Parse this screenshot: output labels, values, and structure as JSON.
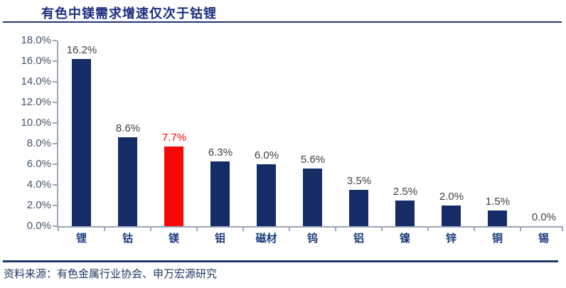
{
  "title": "有色中镁需求增速仅次于钴锂",
  "source": "资料来源：有色金属行业协会、申万宏源研究",
  "colors": {
    "title_text": "#1b2d7f",
    "bar": "#152c66",
    "highlight_bar": "#f90606",
    "highlight_label": "#fb0000",
    "value_label": "#3f3f3f",
    "y_tick_text": "#44546a",
    "category_text": "#1a3b7e",
    "axis": "#9aa5b8",
    "rule": "#1f3770"
  },
  "chart_data": {
    "type": "bar",
    "title": "有色中镁需求增速仅次于钴锂",
    "categories": [
      "锂",
      "钴",
      "镁",
      "钼",
      "磁材",
      "钨",
      "铝",
      "镍",
      "锌",
      "铜",
      "锡"
    ],
    "values": [
      16.2,
      8.6,
      7.7,
      6.3,
      6.0,
      5.6,
      3.5,
      2.5,
      2.0,
      1.5,
      0.0
    ],
    "value_labels": [
      "16.2%",
      "8.6%",
      "7.7%",
      "6.3%",
      "6.0%",
      "5.6%",
      "3.5%",
      "2.5%",
      "2.0%",
      "1.5%",
      "0.0%"
    ],
    "highlight_index": 2,
    "xlabel": "",
    "ylabel": "",
    "ylim": [
      0,
      18
    ],
    "y_tick_step": 2,
    "y_tick_labels": [
      "0.0%",
      "2.0%",
      "4.0%",
      "6.0%",
      "8.0%",
      "10.0%",
      "12.0%",
      "14.0%",
      "16.0%",
      "18.0%"
    ],
    "grid": false,
    "legend_position": "none"
  }
}
